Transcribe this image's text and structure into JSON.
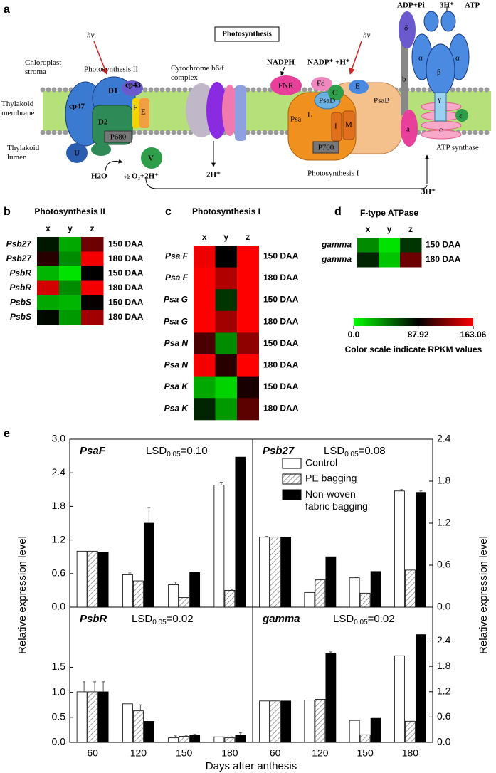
{
  "panel_a": {
    "label": "a",
    "title": "Photosynthesis",
    "labels": [
      "hv",
      "hv",
      "Chloroplast stroma",
      "Photosynthesis II",
      "Thylakoid membrane",
      "Thylakoid lumen",
      "D1",
      "D2",
      "cp47",
      "cp43",
      "F",
      "E",
      "P680",
      "U",
      "V",
      "H2O",
      "½ O₂+2H⁺",
      "Cytochrome b6/f complex",
      "2H⁺",
      "NADPH",
      "NADP⁺ +H⁺",
      "FNR",
      "Fd",
      "C",
      "E",
      "PsaD",
      "PsaB",
      "Psa",
      "L",
      "I",
      "M",
      "P700",
      "Photosynthesis I",
      "ADP+Pi",
      "3H⁺",
      "ATP",
      "δ",
      "α",
      "β",
      "α",
      "γ",
      "ε",
      "b",
      "a",
      "c",
      "ATP synthase",
      "3H⁺"
    ]
  },
  "panel_b": {
    "label": "b",
    "title": "Photosynthesis II",
    "columns": [
      "x",
      "y",
      "z"
    ],
    "rows": [
      {
        "gene": "Psb27",
        "condition": "150 DAA",
        "values": [
          80,
          30,
          120
        ]
      },
      {
        "gene": "Psb27",
        "condition": "180 DAA",
        "values": [
          100,
          40,
          160
        ]
      },
      {
        "gene": "PsbR",
        "condition": "150 DAA",
        "values": [
          25,
          10,
          88
        ]
      },
      {
        "gene": "PsbR",
        "condition": "180 DAA",
        "values": [
          150,
          40,
          160
        ]
      },
      {
        "gene": "PsbS",
        "condition": "150 DAA",
        "values": [
          30,
          25,
          90
        ]
      },
      {
        "gene": "PsbS",
        "condition": "180 DAA",
        "values": [
          85,
          35,
          135
        ]
      }
    ]
  },
  "panel_c": {
    "label": "c",
    "title": "Photosynthesis I",
    "columns": [
      "x",
      "y",
      "z"
    ],
    "rows": [
      {
        "gene": "Psa F",
        "condition": "150 DAA",
        "values": [
          158,
          88,
          163
        ]
      },
      {
        "gene": "Psa F",
        "condition": "180 DAA",
        "values": [
          163,
          140,
          163
        ]
      },
      {
        "gene": "Psa G",
        "condition": "150 DAA",
        "values": [
          163,
          70,
          163
        ]
      },
      {
        "gene": "Psa G",
        "condition": "180 DAA",
        "values": [
          163,
          135,
          163
        ]
      },
      {
        "gene": "Psa N",
        "condition": "150 DAA",
        "values": [
          110,
          40,
          130
        ]
      },
      {
        "gene": "Psa N",
        "condition": "180 DAA",
        "values": [
          160,
          100,
          163
        ]
      },
      {
        "gene": "Psa K",
        "condition": "150 DAA",
        "values": [
          30,
          15,
          95
        ]
      },
      {
        "gene": "Psa K",
        "condition": "180 DAA",
        "values": [
          75,
          35,
          115
        ]
      }
    ]
  },
  "panel_d": {
    "label": "d",
    "title": "F-type ATPase",
    "columns": [
      "x",
      "y",
      "z"
    ],
    "rows": [
      {
        "gene": "gamma",
        "condition": "150 DAA",
        "values": [
          40,
          10,
          70
        ]
      },
      {
        "gene": "gamma",
        "condition": "180 DAA",
        "values": [
          75,
          20,
          120
        ]
      }
    ]
  },
  "color_scale": {
    "min": 0,
    "mid": 87.92,
    "max": 163.06,
    "low_color": "#00ff00",
    "mid_color": "#000000",
    "high_color": "#ff0000",
    "ticks": [
      {
        "value": 0,
        "label": "0.0"
      },
      87.92,
      163.06
    ],
    "caption": "Color scale indicate RPKM values"
  },
  "panel_e": {
    "label": "e",
    "xlabel": "Days after anthesis",
    "ylabel": "Relative expression level",
    "categories": [
      60,
      120,
      150,
      180
    ],
    "series": [
      {
        "name": "Control",
        "color": "#ffffff"
      },
      {
        "name": "PE bagging",
        "color": "hatch"
      },
      {
        "name": "Non-woven fabric bagging",
        "color": "#000000"
      }
    ],
    "charts": [
      {
        "type": "bar",
        "title": "PsaF",
        "lsd": {
          "name": "LSD",
          "sub": "0.05",
          "value": "=0.10"
        },
        "axis": "left",
        "ylim": [
          0,
          3
        ],
        "yticks": [
          {
            "value": 0,
            "label": "0.0"
          },
          0.6,
          1.2,
          1.8,
          2.4,
          {
            "value": 3,
            "label": "3.0"
          }
        ],
        "values": [
          [
            1.0,
            0.58,
            0.4,
            2.18
          ],
          [
            1.0,
            0.47,
            0.17,
            0.3
          ],
          [
            0.98,
            1.5,
            0.62,
            2.68
          ]
        ],
        "errors": [
          [
            null,
            0.03,
            0.05,
            0.05
          ],
          [
            null,
            null,
            null,
            0.02
          ],
          [
            null,
            0.28,
            null,
            null
          ]
        ]
      },
      {
        "type": "bar",
        "title": "Psb27",
        "lsd": {
          "name": "LSD",
          "sub": "0.05",
          "value": "=0.08"
        },
        "axis": "right",
        "ylim": [
          0,
          2.4
        ],
        "yticks": [
          {
            "value": 0,
            "label": "0.0"
          },
          0.6,
          1.2,
          1.8,
          2.4
        ],
        "values": [
          [
            1.0,
            0.21,
            0.42,
            1.66
          ],
          [
            1.0,
            0.39,
            0.2,
            0.53
          ],
          [
            1.0,
            0.72,
            0.51,
            1.64
          ]
        ],
        "errors": [
          [
            0.01,
            null,
            0.01,
            0.02
          ],
          [
            null,
            null,
            null,
            null
          ],
          [
            null,
            null,
            null,
            0.02
          ]
        ]
      },
      {
        "type": "bar",
        "title": "PsbR",
        "lsd": {
          "name": "LSD",
          "sub": "0.05",
          "value": "=0.02"
        },
        "axis": "left",
        "ylim": [
          0,
          2.7
        ],
        "yticks": [
          {
            "value": 0,
            "label": "0.0"
          },
          0.5,
          {
            "value": 1,
            "label": "1.0"
          },
          1.5
        ],
        "values": [
          [
            1.01,
            0.77,
            0.09,
            0.11
          ],
          [
            1.01,
            0.63,
            0.12,
            0.09
          ],
          [
            1.01,
            0.42,
            0.15,
            0.15
          ]
        ],
        "errors": [
          [
            0.2,
            null,
            0.04,
            null
          ],
          [
            0.2,
            0.12,
            0.02,
            0.02
          ],
          [
            0.2,
            null,
            0.01,
            0.04
          ]
        ]
      },
      {
        "type": "bar",
        "title": "gamma",
        "lsd": {
          "name": "LSD",
          "sub": "0.05",
          "value": "=0.02"
        },
        "axis": "right",
        "ylim": [
          0,
          3.2
        ],
        "yticks": [
          {
            "value": 0,
            "label": "0.0"
          },
          0.6,
          1.2,
          1.8,
          2.4
        ],
        "values": [
          [
            0.98,
            1.0,
            0.52,
            2.05
          ],
          [
            0.98,
            1.02,
            0.18,
            0.5
          ],
          [
            0.98,
            2.1,
            0.57,
            2.55
          ]
        ],
        "errors": [
          [
            null,
            null,
            null,
            null
          ],
          [
            null,
            null,
            null,
            null
          ],
          [
            null,
            0.04,
            null,
            null
          ]
        ]
      }
    ]
  }
}
